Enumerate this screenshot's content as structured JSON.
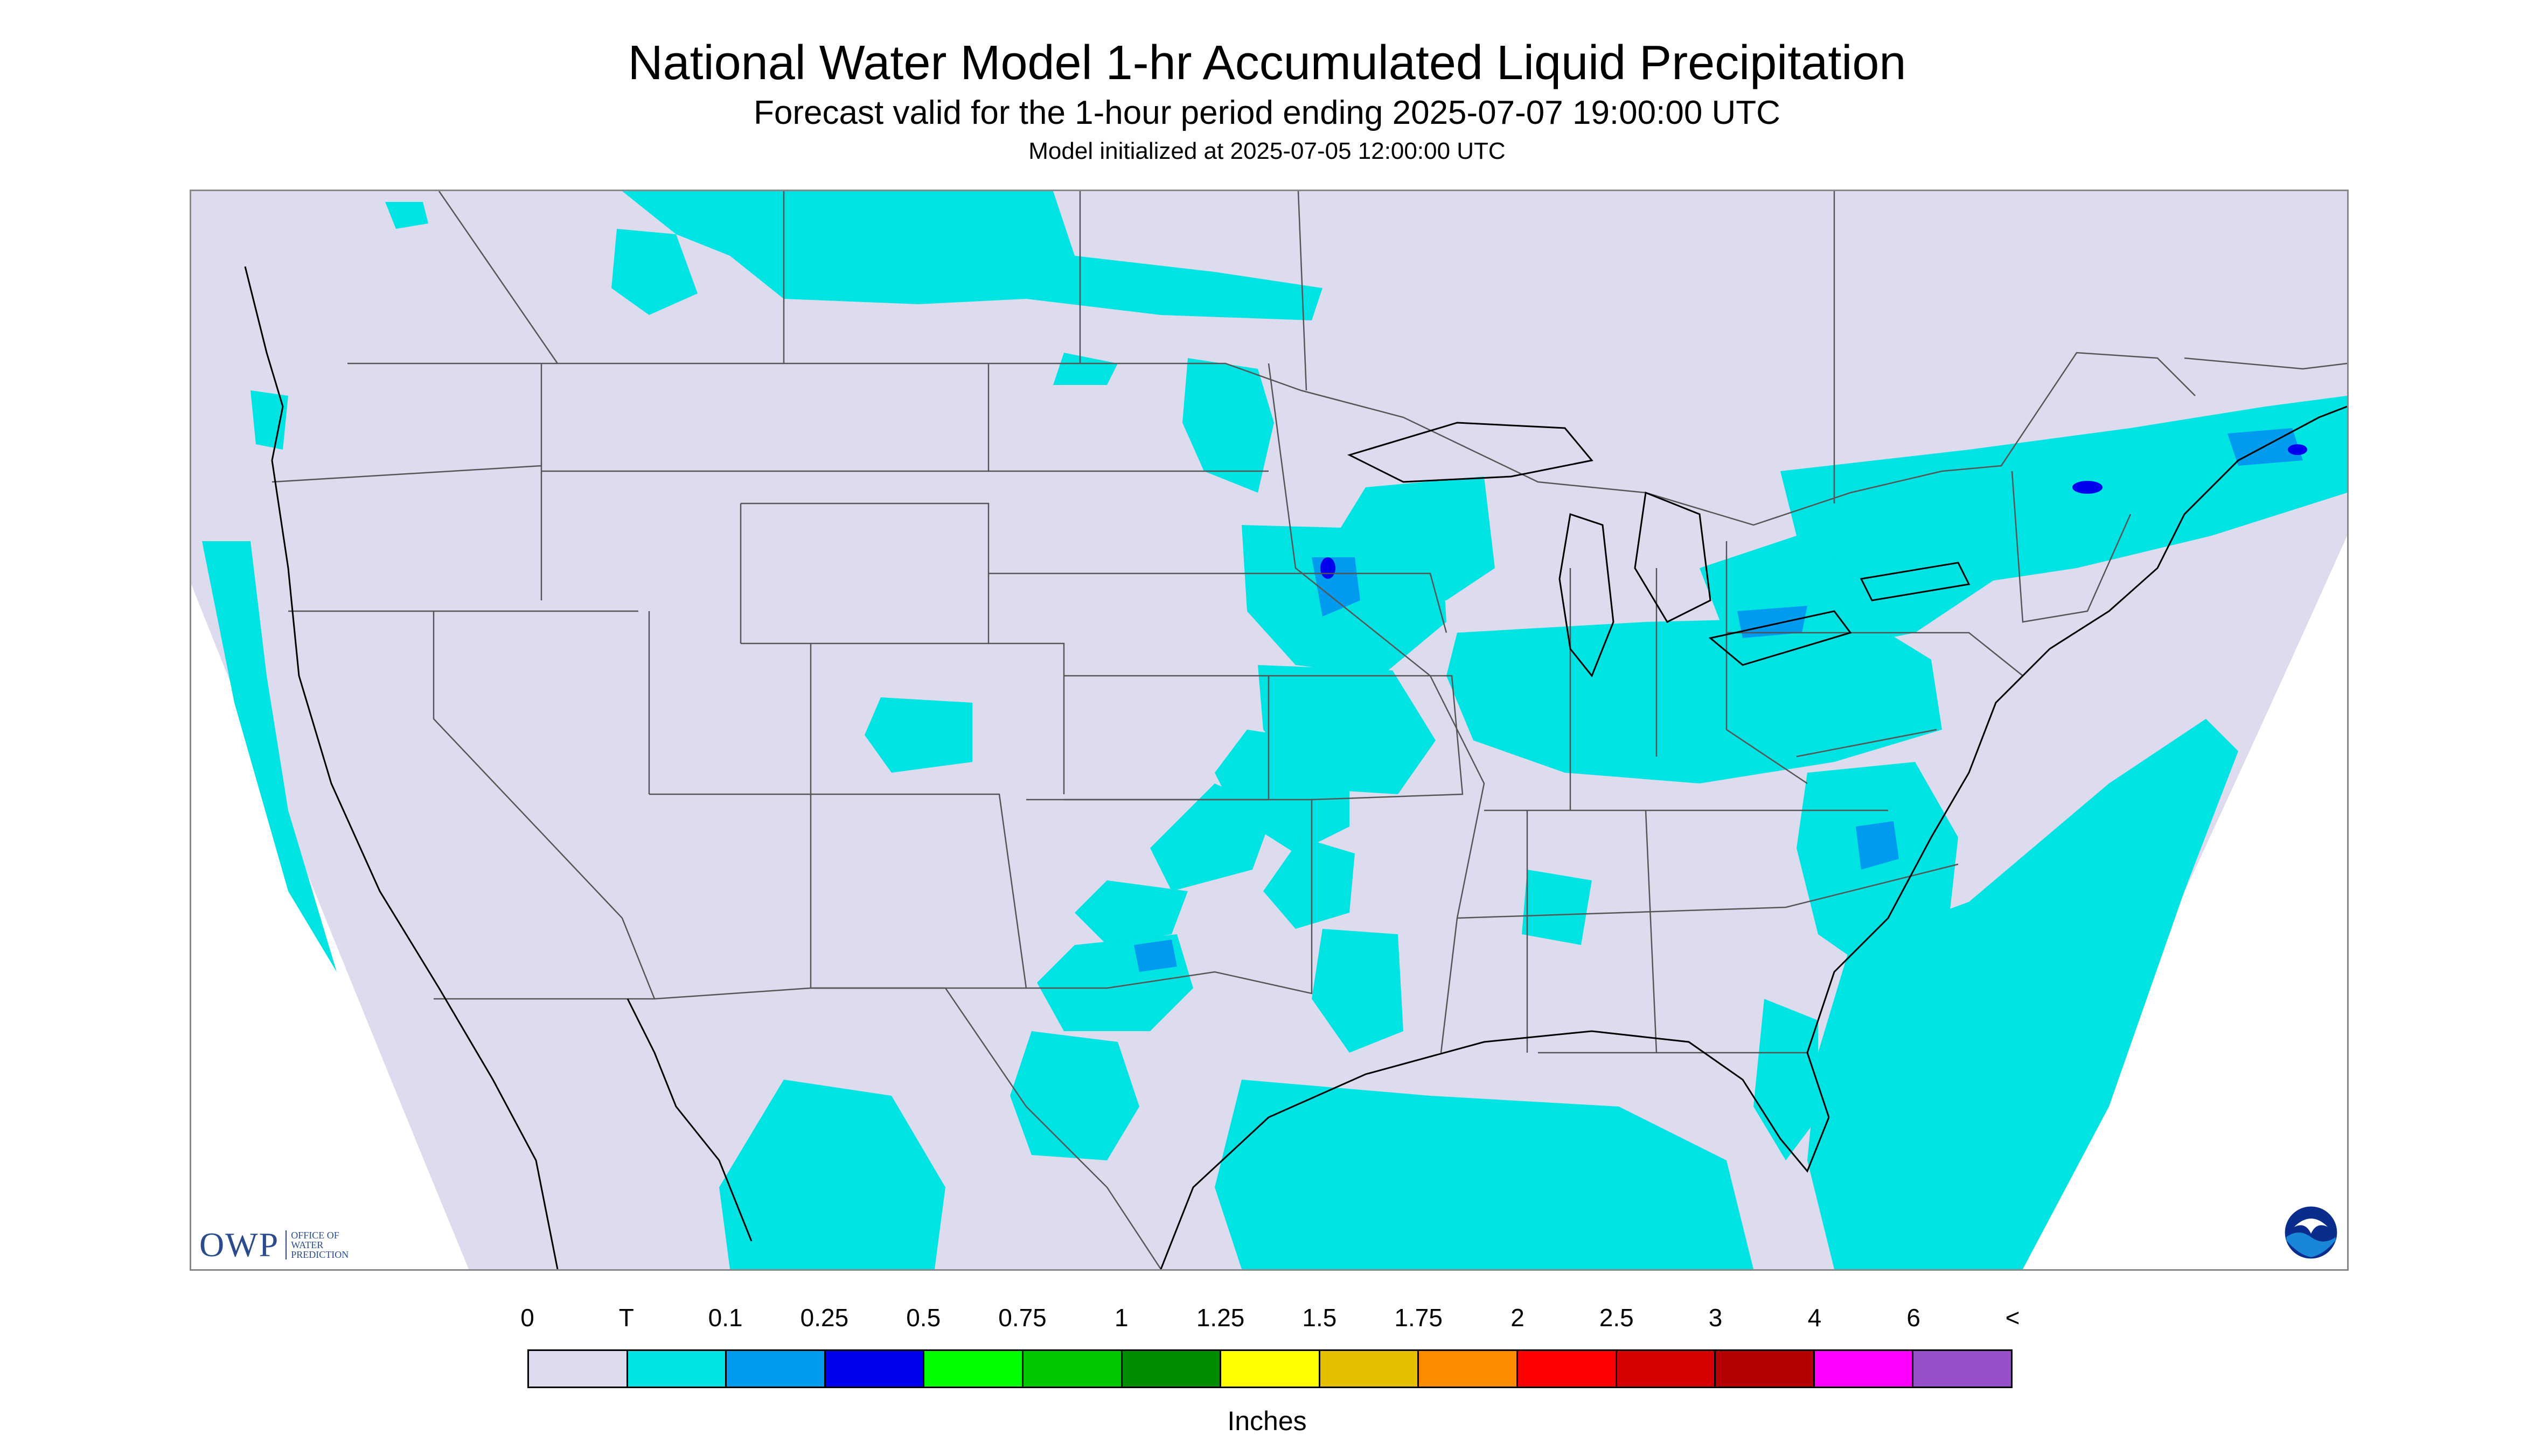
{
  "header": {
    "title": "National Water Model 1-hr Accumulated Liquid Precipitation",
    "subtitle": "Forecast valid for the 1-hour period ending 2025-07-07 19:00:00 UTC",
    "init": "Model initialized at 2025-07-05 12:00:00 UTC"
  },
  "map": {
    "background_color": "#dcdcee",
    "precip_color": "#00e3e3",
    "heavy_color": "#009aee",
    "peak_color": "#0000ee",
    "border_color": "#555555",
    "coast_color": "#000000"
  },
  "logos": {
    "owp_text": "OWP",
    "owp_subtext": "OFFICE OF WATER PREDICTION",
    "noaa_icon": "noaa-logo-icon"
  },
  "legend": {
    "labels": [
      "0",
      "T",
      "0.1",
      "0.25",
      "0.5",
      "0.75",
      "1",
      "1.25",
      "1.5",
      "1.75",
      "2",
      "2.5",
      "3",
      "4",
      "6",
      "<"
    ],
    "colors": [
      "#dcdcee",
      "#00e3e3",
      "#009aee",
      "#0000ee",
      "#00ff00",
      "#00c800",
      "#008c00",
      "#ffff00",
      "#e6be00",
      "#ff8c00",
      "#ff0000",
      "#d60000",
      "#b40000",
      "#ff00ff",
      "#9650c8"
    ],
    "unit": "Inches"
  }
}
